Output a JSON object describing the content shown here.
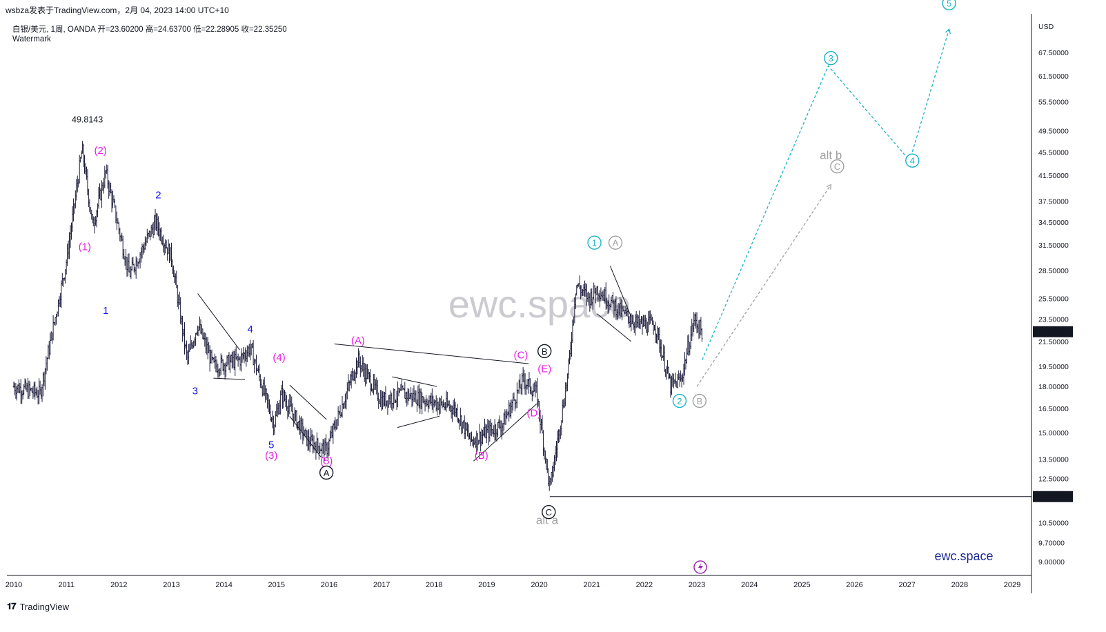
{
  "header": {
    "publish_line": "wsbza发表于TradingView.com，2月 04, 2023 14:00 UTC+10",
    "symbol_info": "白银/美元, 1周, OANDA  开=23.60200  高=24.63700  低=22.28905  收=22.35250",
    "watermark_label": "Watermark"
  },
  "footer": {
    "logo_text": "TradingView"
  },
  "watermark_text": "ewc.space",
  "brand_text": "ewc.space",
  "colors": {
    "candles": "#1a1a3a",
    "magenta": "#e91ee0",
    "blue": "#1414e6",
    "cyan": "#1ab3c9",
    "gray": "#a0a0a0",
    "black": "#131722"
  },
  "chart_data": {
    "type": "candlestick",
    "currency": "USD",
    "x_ticks": [
      "2010",
      "2011",
      "2012",
      "2013",
      "2014",
      "2015",
      "2016",
      "2017",
      "2018",
      "2019",
      "2020",
      "2021",
      "2022",
      "2023",
      "2024",
      "2025",
      "2026",
      "2027",
      "2028",
      "2029"
    ],
    "y_scale": "log",
    "y_ticks": [
      "67.50000",
      "61.50000",
      "55.50000",
      "49.50000",
      "45.50000",
      "41.50000",
      "37.50000",
      "34.50000",
      "31.50000",
      "28.50000",
      "25.50000",
      "23.50000",
      "21.50000",
      "19.50000",
      "18.00000",
      "16.50000",
      "15.00000",
      "13.50000",
      "12.50000",
      "10.50000",
      "9.70000",
      "9.00000"
    ],
    "ylim": [
      8.8,
      80
    ],
    "last_price": "22.35250",
    "support_level": "11.64116",
    "high_label": "49.8143",
    "series": [
      {
        "x": [
          2010.0,
          2010.5,
          2011.0,
          2011.3,
          2011.5,
          2011.75,
          2012.2,
          2012.7,
          2013.0,
          2013.3,
          2013.5,
          2013.8,
          2014.3,
          2014.5,
          2014.95,
          2015.1,
          2015.6,
          2015.95,
          2016.55,
          2017.0,
          2017.4,
          2017.9,
          2018.4,
          2018.7,
          2019.0,
          2019.3,
          2019.7,
          2019.95,
          2020.2,
          2020.55,
          2020.7,
          2020.95,
          2021.1,
          2021.6,
          2021.9,
          2022.2,
          2022.5,
          2022.7,
          2022.95,
          2023.1
        ],
        "y": [
          18.0,
          17.5,
          29.5,
          46.0,
          34.0,
          42.0,
          28.0,
          34.5,
          30.0,
          20.0,
          23.0,
          19.5,
          20.0,
          21.0,
          15.5,
          17.5,
          14.5,
          14.0,
          20.0,
          17.0,
          17.5,
          17.0,
          16.5,
          14.5,
          15.0,
          15.5,
          18.5,
          17.5,
          12.0,
          19.0,
          27.0,
          25.5,
          26.5,
          24.0,
          23.0,
          23.0,
          18.0,
          18.5,
          23.5,
          22.35
        ]
      }
    ],
    "wave_labels": [
      {
        "text": "(1)",
        "x": 2011.35,
        "y": 31.3,
        "color": "magenta"
      },
      {
        "text": "(2)",
        "x": 2011.65,
        "y": 45.8,
        "color": "magenta"
      },
      {
        "text": "1",
        "x": 2011.75,
        "y": 24.3,
        "color": "blue"
      },
      {
        "text": "2",
        "x": 2012.75,
        "y": 38.4,
        "color": "blue"
      },
      {
        "text": "3",
        "x": 2013.45,
        "y": 17.7,
        "color": "blue"
      },
      {
        "text": "4",
        "x": 2014.5,
        "y": 22.6,
        "color": "blue"
      },
      {
        "text": "(4)",
        "x": 2015.05,
        "y": 20.2,
        "color": "magenta"
      },
      {
        "text": "5",
        "x": 2014.9,
        "y": 14.3,
        "color": "blue"
      },
      {
        "text": "(3)",
        "x": 2014.9,
        "y": 13.7,
        "color": "magenta"
      },
      {
        "text": "(5)",
        "x": 2015.95,
        "y": 13.4,
        "color": "magenta"
      },
      {
        "text": "(A)",
        "x": 2016.55,
        "y": 21.6,
        "color": "magenta"
      },
      {
        "text": "(B)",
        "x": 2018.9,
        "y": 13.7,
        "color": "magenta"
      },
      {
        "text": "(C)",
        "x": 2019.65,
        "y": 20.4,
        "color": "magenta"
      },
      {
        "text": "(D)",
        "x": 2019.9,
        "y": 16.2,
        "color": "magenta"
      },
      {
        "text": "(E)",
        "x": 2020.1,
        "y": 19.3,
        "color": "magenta"
      },
      {
        "text": "alt",
        "x": 2020.15,
        "y": 10.45,
        "color": "gray"
      },
      {
        "text": "a",
        "x": 2020.15,
        "y": 10.45,
        "color": "gray"
      },
      {
        "text": "alt",
        "x": 2025.55,
        "y": 44.3,
        "color": "gray"
      },
      {
        "text": "b",
        "x": 2025.55,
        "y": 44.3,
        "color": "gray"
      }
    ],
    "circle_labels": [
      {
        "text": "A",
        "x": 2015.95,
        "y": 12.8,
        "style": "black"
      },
      {
        "text": "B",
        "x": 2020.1,
        "y": 20.7,
        "style": "black"
      },
      {
        "text": "C",
        "x": 2020.18,
        "y": 10.95,
        "style": "black"
      },
      {
        "text": "1",
        "x": 2021.05,
        "y": 31.8,
        "style": "cyan"
      },
      {
        "text": "A",
        "x": 2021.45,
        "y": 31.8,
        "style": "gray"
      },
      {
        "text": "2",
        "x": 2022.67,
        "y": 17.0,
        "style": "cyan"
      },
      {
        "text": "B",
        "x": 2023.05,
        "y": 17.0,
        "style": "gray"
      },
      {
        "text": "3",
        "x": 2025.55,
        "y": 66.0,
        "style": "cyan"
      },
      {
        "text": "C",
        "x": 2025.67,
        "y": 43.0,
        "style": "gray"
      },
      {
        "text": "4",
        "x": 2027.1,
        "y": 44.0,
        "style": "cyan"
      },
      {
        "text": "5",
        "x": 2027.8,
        "y": 82.0,
        "style": "cyan"
      }
    ],
    "projection_primary": {
      "x": [
        2023.1,
        2025.5,
        2027.05,
        2027.8
      ],
      "y": [
        20.0,
        64.0,
        44.0,
        74.0
      ]
    },
    "projection_alt": {
      "x": [
        2023.0,
        2025.55
      ],
      "y": [
        18.0,
        40.0
      ]
    }
  }
}
